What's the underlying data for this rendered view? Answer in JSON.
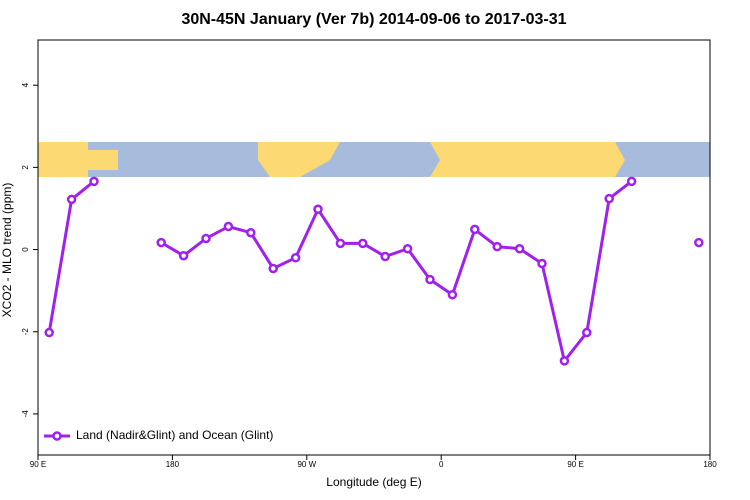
{
  "chart_data": {
    "type": "line",
    "title": "30N-45N January (Ver 7b)   2014-09-06 to 2017-03-31",
    "x_label": "Longitude (deg E)",
    "y_label": "XCO2 - MLO trend (ppm)",
    "x": [
      97.5,
      112.5,
      127.5,
      142.5,
      157.5,
      172.5,
      187.5,
      202.5,
      217.5,
      232.5,
      247.5,
      262.5,
      277.5,
      292.5,
      307.5,
      322.5,
      337.5,
      352.5,
      367.5,
      382.5,
      397.5,
      412.5,
      427.5,
      442.5,
      457.5,
      472.5,
      487.5,
      502.5,
      517.5,
      532.5
    ],
    "series": [
      {
        "name": "Land (Nadir&Glint) and Ocean (Glint)",
        "color": "#a020f0",
        "values": [
          -2.02,
          1.22,
          1.66,
          null,
          null,
          0.17,
          -0.15,
          0.27,
          0.56,
          0.41,
          -0.46,
          -0.2,
          0.98,
          0.15,
          0.15,
          -0.17,
          0.02,
          -0.73,
          -1.1,
          0.49,
          0.07,
          0.02,
          -0.34,
          -2.71,
          -2.02,
          1.24,
          1.66,
          null,
          null,
          0.17
        ]
      }
    ],
    "xlim": [
      90,
      540
    ],
    "xticks": [
      {
        "value": 90,
        "label": "90 E"
      },
      180,
      {
        "value": 270,
        "label": "90 W"
      },
      {
        "value": 360,
        "label": "0"
      },
      {
        "value": 450,
        "label": "90 E"
      },
      {
        "value": 540,
        "label": "180"
      }
    ],
    "ylim": [
      -5.0,
      5.1
    ],
    "yticks": [
      -4,
      -2,
      0,
      2,
      4
    ],
    "legend": "bottom left"
  }
}
